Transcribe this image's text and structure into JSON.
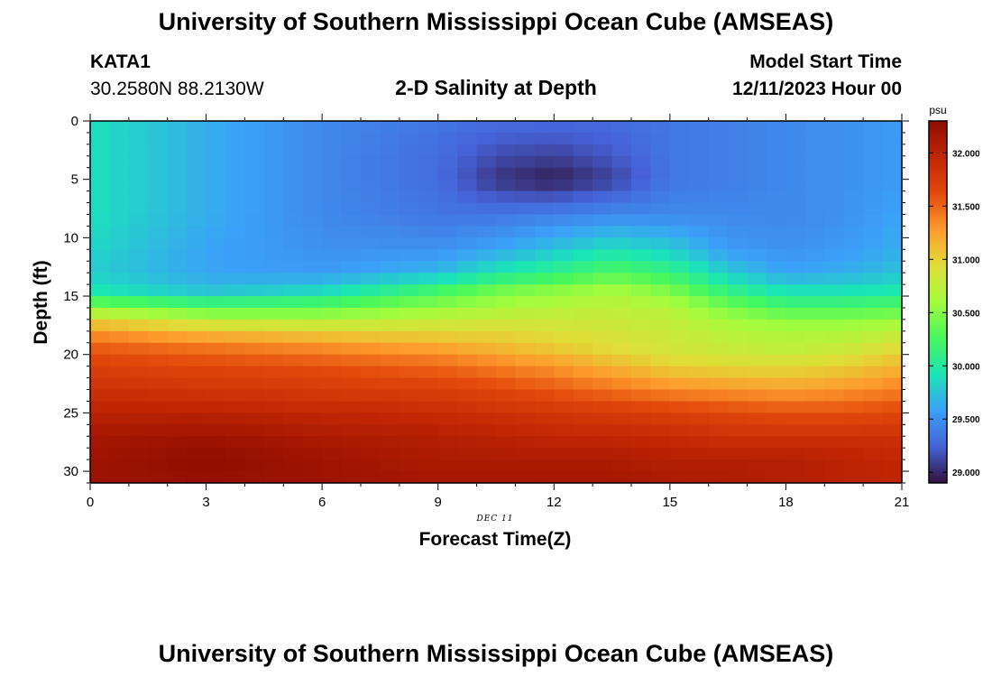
{
  "page": {
    "title": "University of Southern Mississippi Ocean Cube (AMSEAS)",
    "footer_title": "University of Southern Mississippi Ocean Cube (AMSEAS)",
    "station": "KATA1",
    "coords": "30.2580N  88.2130W",
    "plot_title": "2-D Salinity at Depth",
    "model_start_label": "Model Start Time",
    "model_start_value": "12/11/2023 Hour 00",
    "date_label": "DEC 11"
  },
  "chart_data": {
    "type": "heatmap",
    "title": "2-D Salinity at Depth",
    "xlabel": "Forecast Time(Z)",
    "ylabel": "Depth (ft)",
    "xlim": [
      0,
      21
    ],
    "ylim": [
      0,
      31
    ],
    "y_inverted": true,
    "xticks": [
      0,
      3,
      6,
      9,
      12,
      15,
      18,
      21
    ],
    "yticks": [
      0,
      5,
      10,
      15,
      20,
      25,
      30
    ],
    "colorbar": {
      "unit": "psu",
      "range": [
        28.9,
        32.3
      ],
      "ticks": [
        "29.000",
        "29.500",
        "30.000",
        "30.500",
        "31.000",
        "31.500",
        "32.000"
      ],
      "tick_values": [
        29.0,
        29.5,
        30.0,
        30.5,
        31.0,
        31.5,
        32.0
      ],
      "colormap": "turbo"
    },
    "grid": {
      "description": "Salinity (psu) sampled at forecast hours (columns) and depths in ft (rows)",
      "times": [
        0,
        3,
        6,
        9,
        10.5,
        12,
        13.5,
        15,
        16.5,
        18,
        19.5,
        21
      ],
      "depths": [
        0,
        3,
        5,
        8,
        11,
        13,
        14.5,
        16,
        17,
        18,
        19.5,
        21,
        23,
        25,
        27,
        29,
        31
      ],
      "values": [
        [
          29.9,
          29.65,
          29.45,
          29.35,
          29.3,
          29.3,
          29.3,
          29.35,
          29.4,
          29.45,
          29.5,
          29.55
        ],
        [
          29.9,
          29.65,
          29.45,
          29.3,
          29.15,
          29.1,
          29.2,
          29.35,
          29.4,
          29.45,
          29.5,
          29.55
        ],
        [
          29.9,
          29.65,
          29.45,
          29.3,
          29.05,
          28.95,
          29.1,
          29.35,
          29.4,
          29.45,
          29.5,
          29.55
        ],
        [
          29.9,
          29.65,
          29.45,
          29.35,
          29.35,
          29.4,
          29.45,
          29.45,
          29.45,
          29.45,
          29.5,
          29.6
        ],
        [
          29.85,
          29.6,
          29.5,
          29.5,
          29.6,
          29.75,
          29.9,
          29.8,
          29.55,
          29.5,
          29.55,
          29.65
        ],
        [
          29.8,
          29.6,
          29.55,
          29.7,
          29.95,
          30.1,
          30.3,
          30.15,
          29.8,
          29.6,
          29.65,
          29.75
        ],
        [
          29.95,
          29.75,
          29.85,
          30.2,
          30.4,
          30.5,
          30.6,
          30.45,
          30.1,
          29.9,
          29.9,
          29.95
        ],
        [
          30.5,
          30.3,
          30.35,
          30.55,
          30.65,
          30.7,
          30.75,
          30.7,
          30.45,
          30.25,
          30.25,
          30.3
        ],
        [
          30.95,
          30.7,
          30.65,
          30.75,
          30.8,
          30.8,
          30.8,
          30.75,
          30.6,
          30.5,
          30.5,
          30.55
        ],
        [
          31.3,
          31.1,
          31.0,
          30.95,
          30.95,
          30.9,
          30.85,
          30.8,
          30.7,
          30.65,
          30.65,
          30.75
        ],
        [
          31.55,
          31.45,
          31.35,
          31.25,
          31.15,
          31.05,
          30.95,
          30.85,
          30.8,
          30.75,
          30.8,
          30.95
        ],
        [
          31.7,
          31.65,
          31.6,
          31.5,
          31.4,
          31.3,
          31.15,
          31.0,
          30.95,
          30.95,
          31.0,
          31.15
        ],
        [
          31.85,
          31.8,
          31.75,
          31.7,
          31.65,
          31.55,
          31.45,
          31.35,
          31.3,
          31.25,
          31.3,
          31.4
        ],
        [
          32.0,
          32.0,
          31.95,
          31.9,
          31.85,
          31.8,
          31.75,
          31.7,
          31.65,
          31.6,
          31.6,
          31.65
        ],
        [
          32.15,
          32.2,
          32.1,
          32.05,
          32.0,
          31.95,
          31.95,
          31.9,
          31.85,
          31.85,
          31.85,
          31.85
        ],
        [
          32.2,
          32.3,
          32.2,
          32.1,
          32.1,
          32.1,
          32.1,
          32.05,
          32.05,
          32.05,
          32.0,
          31.95
        ],
        [
          32.2,
          32.25,
          32.2,
          32.15,
          32.15,
          32.15,
          32.15,
          32.1,
          32.1,
          32.05,
          32.0,
          31.95
        ]
      ]
    }
  }
}
